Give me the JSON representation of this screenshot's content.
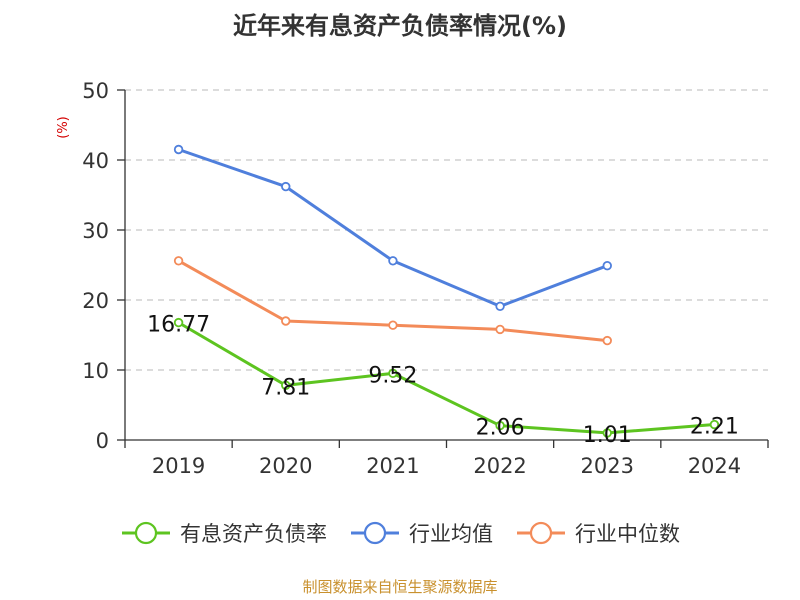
{
  "title": "近年来有息资产负债率情况(%)",
  "source": "制图数据来自恒生聚源数据库",
  "chart_data": {
    "type": "line",
    "title": "近年来有息资产负债率情况(%)",
    "ylabel": "(%)",
    "xlabel": "",
    "categories": [
      "2019",
      "2020",
      "2021",
      "2022",
      "2023",
      "2024"
    ],
    "ylim": [
      0,
      50
    ],
    "yticks": [
      0,
      10,
      20,
      30,
      40,
      50
    ],
    "grid": true,
    "legend_position": "bottom",
    "series": [
      {
        "name": "有息资产负债率",
        "color": "#5dc420",
        "values": [
          16.77,
          7.81,
          9.52,
          2.06,
          1.01,
          2.21
        ],
        "labels": [
          "16.77",
          "7.81",
          "9.52",
          "2.06",
          "1.01",
          "2.21"
        ]
      },
      {
        "name": "行业均值",
        "color": "#4f7fdc",
        "values": [
          41.5,
          36.2,
          25.6,
          19.1,
          24.9,
          null
        ]
      },
      {
        "name": "行业中位数",
        "color": "#f38b59",
        "values": [
          25.6,
          17.0,
          16.4,
          15.8,
          14.2,
          null
        ]
      }
    ]
  }
}
